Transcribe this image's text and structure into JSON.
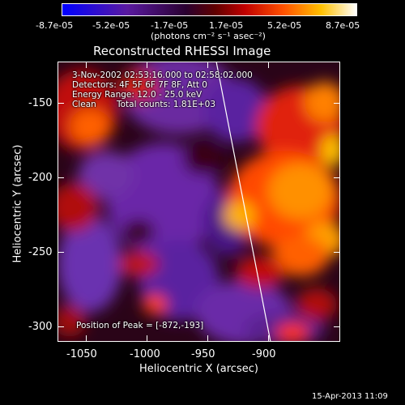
{
  "colorbar": {
    "tick_labels": [
      "-8.7e-05",
      "-5.2e-05",
      "-1.7e-05",
      "1.7e-05",
      "5.2e-05",
      "8.7e-05"
    ],
    "units": "(photons cm⁻² s⁻¹ asec⁻²)"
  },
  "plot": {
    "title": "Reconstructed RHESSI Image",
    "xlabel": "Heliocentric X (arcsec)",
    "ylabel": "Heliocentric Y (arcsec)",
    "x_ticks": [
      "-1050",
      "-1000",
      "-950",
      "-900"
    ],
    "y_ticks": [
      "-150",
      "-200",
      "-250",
      "-300"
    ],
    "x_range": [
      -1065,
      -865
    ],
    "y_range": [
      -310,
      -125
    ]
  },
  "annotations": {
    "time_range": "3-Nov-2002 02:53:16.000 to 02:58:02.000",
    "detectors": "Detectors: 4F 5F 6F 7F 8F, Att 0",
    "energy": "Energy Range: 12.0 - 25.0 keV",
    "clean": "Clean",
    "counts": "Total counts: 1.81E+03",
    "peak": "Position of Peak = [-872,-193]"
  },
  "footer": {
    "timestamp": "15-Apr-2013 11:09"
  },
  "colors": {
    "colormap": [
      "#0000ff",
      "#5a1a9a",
      "#3a0010",
      "#b00000",
      "#ff5000",
      "#ffd000",
      "#ffffff"
    ]
  }
}
